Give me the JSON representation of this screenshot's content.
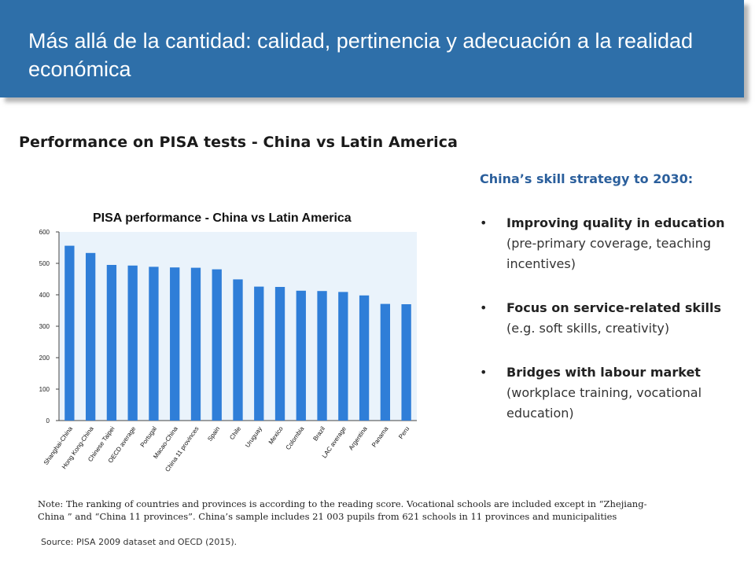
{
  "slide": {
    "title": "Más allá de la cantidad: calidad, pertinencia y adecuación a la realidad económica",
    "subtitle": "Performance on PISA tests - China vs Latin America",
    "accent_color": "#2e6fa9"
  },
  "strategy": {
    "heading": "China’s skill strategy to 2030:",
    "bullet_glyph": "•",
    "items": [
      {
        "strong": "Improving quality in education",
        "detail": "(pre-primary coverage, teaching incentives)"
      },
      {
        "strong": "Focus on service-related skills",
        "detail": "(e.g. soft skills, creativity)"
      },
      {
        "strong": "Bridges with labour market",
        "detail": "(workplace training, vocational education)"
      }
    ]
  },
  "chart_data": {
    "type": "bar",
    "title": "PISA performance - China vs Latin America",
    "categories": [
      "Shanghai-China",
      "Hong Kong-China",
      "Chinese Taipei",
      "OECD average",
      "Portugal",
      "Macao-China",
      "China 11 provinces",
      "Spain",
      "Chile",
      "Uruguay",
      "Mexico",
      "Colombia",
      "Brazil",
      "LAC average",
      "Argentina",
      "Panama",
      "Peru"
    ],
    "values": [
      556,
      533,
      495,
      493,
      489,
      487,
      486,
      481,
      449,
      426,
      425,
      413,
      412,
      409,
      398,
      371,
      370
    ],
    "ylim": [
      0,
      600
    ],
    "yticks": [
      0,
      100,
      200,
      300,
      400,
      500,
      600
    ],
    "grid": false,
    "bar_color": "#2f7ed8",
    "plot_background": "#eaf3fb"
  },
  "note": "Note: The ranking of countries and provinces is according to the reading score. Vocational schools are included except in “Zhejiang-China ” and “China 11 provinces”. China’s sample includes 21 003 pupils from 621 schools in 11 provinces and municipalities",
  "source": "Source: PISA 2009 dataset and OECD (2015)."
}
